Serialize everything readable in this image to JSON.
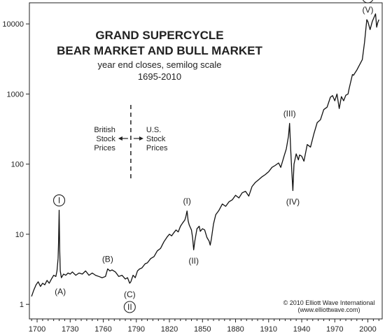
{
  "chart_data": {
    "type": "line",
    "title": "GRAND SUPERCYCLE",
    "title2": "BEAR MARKET AND BULL MARKET",
    "subtitle": "year end closes, semilog scale",
    "subtitle2": "1695-2010",
    "yscale": "log",
    "ylim": [
      0.62,
      20000
    ],
    "xlim": [
      1693,
      2013
    ],
    "yticks": [
      1,
      10,
      100,
      1000,
      10000
    ],
    "ytick_labels": [
      "1",
      "10",
      "100",
      "1000",
      "10000"
    ],
    "xticks": [
      1700,
      1730,
      1760,
      1790,
      1820,
      1850,
      1880,
      1910,
      1940,
      1970,
      2000
    ],
    "xtick_labels": [
      "1700",
      "1730",
      "1760",
      "1790",
      "1820",
      "1850",
      "1880",
      "1910",
      "1940",
      "1970",
      "2000"
    ],
    "grid": false,
    "series": [
      {
        "x": [
          1695,
          1697,
          1699,
          1701,
          1703,
          1705,
          1707,
          1709,
          1711,
          1713,
          1715,
          1717,
          1718,
          1719,
          1719.5,
          1720,
          1720.5,
          1721,
          1722,
          1724,
          1726,
          1728,
          1730,
          1732,
          1735,
          1738,
          1741,
          1744,
          1747,
          1750,
          1753,
          1756,
          1759,
          1762,
          1764,
          1766,
          1768,
          1771,
          1774,
          1777,
          1780,
          1782,
          1784,
          1785,
          1787,
          1789,
          1791,
          1793,
          1795,
          1798,
          1800,
          1803,
          1806,
          1809,
          1812,
          1815,
          1818,
          1820,
          1822,
          1824,
          1826,
          1828,
          1830,
          1832,
          1834,
          1835,
          1836,
          1837,
          1838,
          1840,
          1841,
          1842,
          1843,
          1845,
          1847,
          1848,
          1850,
          1852,
          1854,
          1856,
          1857,
          1858,
          1859,
          1860,
          1862,
          1865,
          1868,
          1871,
          1874,
          1877,
          1880,
          1883,
          1886,
          1889,
          1892,
          1895,
          1898,
          1901,
          1904,
          1907,
          1910,
          1913,
          1916,
          1919,
          1921,
          1924,
          1926,
          1928,
          1929,
          1930,
          1931,
          1932,
          1933,
          1935,
          1937,
          1938,
          1940,
          1942,
          1945,
          1948,
          1951,
          1954,
          1957,
          1960,
          1963,
          1966,
          1968,
          1970,
          1972,
          1974,
          1976,
          1978,
          1980,
          1982,
          1983,
          1986,
          1987,
          1990,
          1994,
          1995,
          1997,
          1999,
          2000,
          2002,
          2004,
          2007,
          2008,
          2009,
          2010
        ],
        "y": [
          1.3,
          1.6,
          1.9,
          2.1,
          1.8,
          2.0,
          1.9,
          2.2,
          2.0,
          2.3,
          2.6,
          2.5,
          3.0,
          4.5,
          8.0,
          22.0,
          6.0,
          3.0,
          2.4,
          2.7,
          2.6,
          2.8,
          2.7,
          2.9,
          2.6,
          2.8,
          2.7,
          3.0,
          2.6,
          2.8,
          2.6,
          2.5,
          2.4,
          2.5,
          3.2,
          3.0,
          3.1,
          2.9,
          2.5,
          2.6,
          2.3,
          2.4,
          2.0,
          2.1,
          2.6,
          2.4,
          3.0,
          3.2,
          3.3,
          3.8,
          3.9,
          4.5,
          4.8,
          5.8,
          6.3,
          7.8,
          9.2,
          10.0,
          9.5,
          10.5,
          11.5,
          10.8,
          13.0,
          14.5,
          16.0,
          18.0,
          21.5,
          15.5,
          13.5,
          11.5,
          9.0,
          6.0,
          8.0,
          12.0,
          13.0,
          11.0,
          12.0,
          11.5,
          9.0,
          8.0,
          7.0,
          8.5,
          11.0,
          14.0,
          19.0,
          22.0,
          27.0,
          25.0,
          29.0,
          31.0,
          36.0,
          33.0,
          39.0,
          41.0,
          35.0,
          48.0,
          55.0,
          60.0,
          66.0,
          71.0,
          78.0,
          90.0,
          96.0,
          104.0,
          90.0,
          130.0,
          165.0,
          250.0,
          381.0,
          160.0,
          78.0,
          42.0,
          100.0,
          140.0,
          115.0,
          135.0,
          130.0,
          110.0,
          190.0,
          175.0,
          270.0,
          390.0,
          430.0,
          600.0,
          650.0,
          900.0,
          950.0,
          800.0,
          1000.0,
          620.0,
          920.0,
          800.0,
          960.0,
          1000.0,
          1200.0,
          1900.0,
          1850.0,
          2200.0,
          2900.0,
          3100.0,
          5500.0,
          11500.0,
          10800.0,
          8300.0,
          10800.0,
          13900.0,
          9000.0,
          10500.0,
          11500.0
        ]
      }
    ],
    "wave_labels": [
      {
        "text": "I",
        "circled": true,
        "x": 1720,
        "y": 22.0,
        "pos": "above"
      },
      {
        "text": "(A)",
        "circled": false,
        "x": 1721,
        "y": 2.2,
        "pos": "below"
      },
      {
        "text": "(B)",
        "circled": false,
        "x": 1764,
        "y": 3.2,
        "pos": "above"
      },
      {
        "text": "(C)",
        "circled": false,
        "x": 1784,
        "y": 2.0,
        "pos": "below"
      },
      {
        "text": "II",
        "circled": true,
        "x": 1784,
        "y": 2.0,
        "pos": "below2"
      },
      {
        "text": "(I)",
        "circled": false,
        "x": 1836,
        "y": 21.5,
        "pos": "above"
      },
      {
        "text": "(II)",
        "circled": false,
        "x": 1842,
        "y": 6.0,
        "pos": "below"
      },
      {
        "text": "(III)",
        "circled": false,
        "x": 1929,
        "y": 381,
        "pos": "above"
      },
      {
        "text": "(IV)",
        "circled": false,
        "x": 1932,
        "y": 42,
        "pos": "below"
      },
      {
        "text": "(V)",
        "circled": false,
        "x": 2000,
        "y": 11500,
        "pos": "above"
      },
      {
        "text": "III",
        "circled": true,
        "x": 2000,
        "y": 11500,
        "pos": "above2"
      }
    ]
  },
  "annotations": {
    "question_mark": "?",
    "british_line1": "British",
    "british_line2": "Stock",
    "british_line3": "Prices",
    "us_line1": "U.S.",
    "us_line2": "Stock",
    "us_line3": "Prices",
    "divider_year": 1785
  },
  "credit": {
    "line1": "© 2010 Elliott Wave International",
    "line2": "(www.elliottwave.com)"
  }
}
